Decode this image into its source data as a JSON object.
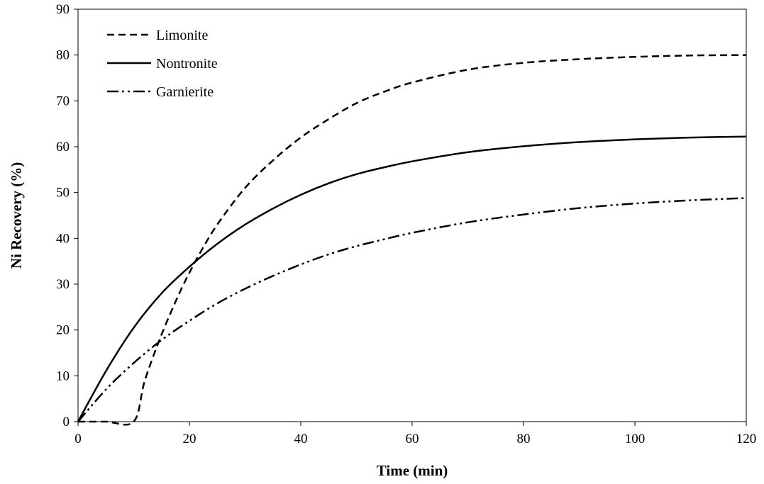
{
  "chart_data": {
    "type": "line",
    "title": "",
    "xlabel": "Time (min)",
    "ylabel": "Ni Recovery (%)",
    "xlim": [
      0,
      120
    ],
    "ylim": [
      0,
      90
    ],
    "xticks": [
      0,
      20,
      40,
      60,
      80,
      100,
      120
    ],
    "yticks": [
      0,
      10,
      20,
      30,
      40,
      50,
      60,
      70,
      80,
      90
    ],
    "grid": false,
    "legend_position": "top-left",
    "series": [
      {
        "name": "Limonite",
        "style": "dashed",
        "color": "#000000",
        "x": [
          0,
          5,
          10,
          12,
          15,
          18,
          20,
          22,
          25,
          30,
          35,
          40,
          45,
          50,
          55,
          60,
          70,
          80,
          90,
          100,
          110,
          120
        ],
        "y": [
          0,
          0,
          0,
          9,
          19,
          27.5,
          32.5,
          37,
          43,
          51,
          57,
          62,
          66,
          69.5,
          72,
          74,
          76.8,
          78.3,
          79.1,
          79.6,
          79.9,
          80
        ]
      },
      {
        "name": "Nontronite",
        "style": "solid",
        "color": "#000000",
        "x": [
          0,
          5,
          10,
          15,
          20,
          25,
          30,
          35,
          40,
          45,
          50,
          55,
          60,
          70,
          80,
          90,
          100,
          110,
          120
        ],
        "y": [
          0,
          11,
          20.5,
          28,
          33.8,
          38.8,
          43,
          46.5,
          49.5,
          52,
          54,
          55.5,
          56.8,
          58.8,
          60.1,
          61,
          61.6,
          62,
          62.2
        ]
      },
      {
        "name": "Garnierite",
        "style": "dash-dot-dot",
        "color": "#000000",
        "x": [
          0,
          5,
          10,
          15,
          20,
          25,
          30,
          35,
          40,
          45,
          50,
          55,
          60,
          70,
          80,
          90,
          100,
          110,
          120
        ],
        "y": [
          0,
          7,
          12.8,
          17.8,
          22,
          25.8,
          29,
          31.8,
          34.3,
          36.5,
          38.3,
          39.8,
          41.2,
          43.5,
          45.2,
          46.6,
          47.6,
          48.3,
          48.8
        ]
      }
    ]
  }
}
